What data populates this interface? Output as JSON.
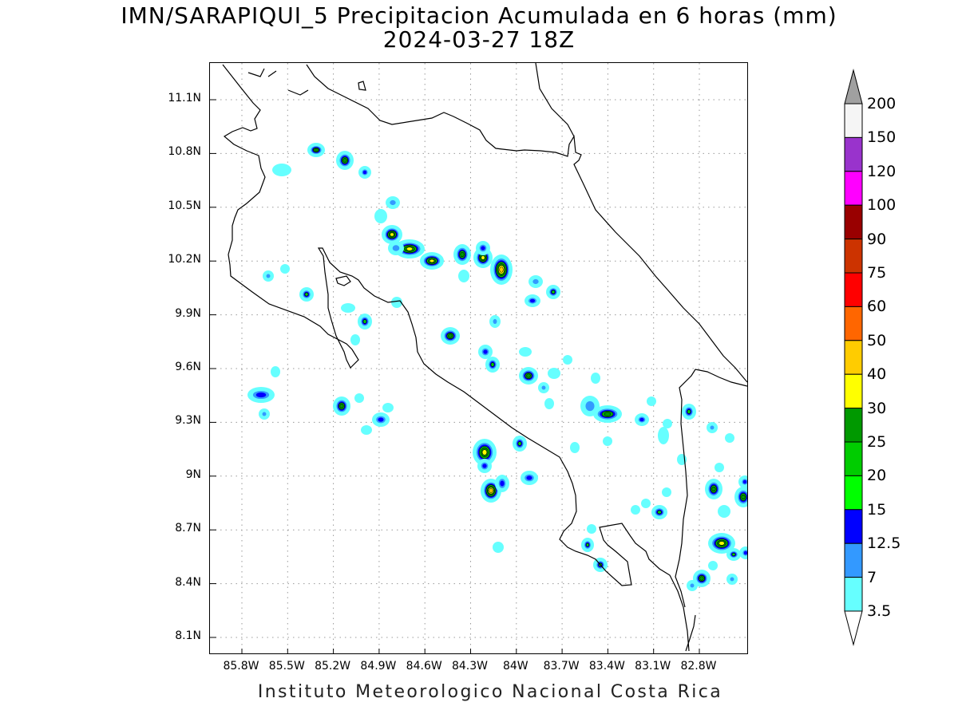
{
  "title": {
    "line1": "IMN/SARAPIQUI_5 Precipitacion Acumulada en 6 horas (mm)",
    "line2": "2024-03-27 18Z"
  },
  "footer": "Instituto Meteorologico Nacional Costa Rica",
  "map": {
    "region": "Costa Rica",
    "lon_range": [
      -86.08,
      -82.57
    ],
    "lat_range": [
      7.95,
      11.28
    ],
    "grid": "dotted",
    "lat_ticks": [
      "11.1N",
      "10.8N",
      "10.5N",
      "10.2N",
      "9.9N",
      "9.6N",
      "9.3N",
      "9N",
      "8.7N",
      "8.4N",
      "8.1N"
    ],
    "lon_ticks": [
      "85.8W",
      "85.5W",
      "85.2W",
      "84.9W",
      "84.6W",
      "84.3W",
      "84W",
      "83.7W",
      "83.4W",
      "83.1W",
      "82.8W"
    ]
  },
  "colorbar": {
    "labels": [
      "200",
      "150",
      "120",
      "100",
      "90",
      "75",
      "60",
      "50",
      "40",
      "30",
      "25",
      "20",
      "15",
      "12.5",
      "7",
      "3.5"
    ],
    "colors": [
      "#f5f5f5",
      "#9933cc",
      "#ff00ff",
      "#990000",
      "#cc3300",
      "#ff0000",
      "#ff6600",
      "#ffcc00",
      "#ffff00",
      "#009900",
      "#00cc00",
      "#00ff00",
      "#0000ff",
      "#3399ff",
      "#66ffff"
    ],
    "over_color": "#a0a0a0",
    "under_color": "#ffffff"
  }
}
